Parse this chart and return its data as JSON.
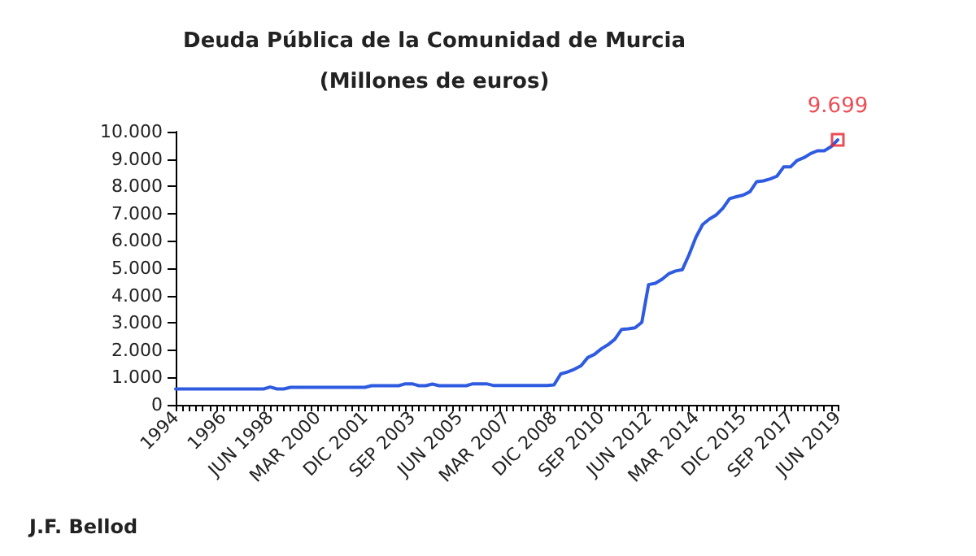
{
  "chart_data": {
    "type": "line",
    "title": "Deuda Pública de la Comunidad de Murcia",
    "subtitle": "(Millones de euros)",
    "annotations": [
      "J.F. Bellod"
    ],
    "categories": [
      "1994",
      null,
      null,
      null,
      null,
      null,
      null,
      "1996",
      null,
      null,
      null,
      null,
      null,
      null,
      "JUN 1998",
      null,
      null,
      null,
      null,
      null,
      null,
      "MAR 2000",
      null,
      null,
      null,
      null,
      null,
      null,
      "DIC 2001",
      null,
      null,
      null,
      null,
      null,
      null,
      "SEP 2003",
      null,
      null,
      null,
      null,
      null,
      null,
      "JUN 2005",
      null,
      null,
      null,
      null,
      null,
      null,
      "MAR 2007",
      null,
      null,
      null,
      null,
      null,
      null,
      "DIC 2008",
      null,
      null,
      null,
      null,
      null,
      null,
      "SEP 2010",
      null,
      null,
      null,
      null,
      null,
      null,
      "JUN 2012",
      null,
      null,
      null,
      null,
      null,
      null,
      "MAR 2014",
      null,
      null,
      null,
      null,
      null,
      null,
      "DIC 2015",
      null,
      null,
      null,
      null,
      null,
      null,
      "SEP 2017",
      null,
      null,
      null,
      null,
      null,
      null,
      "JUN 2019"
    ],
    "series": [
      {
        "color": "#2e5be0",
        "marker": "none",
        "values": [
          580,
          580,
          580,
          580,
          580,
          580,
          580,
          580,
          580,
          580,
          580,
          580,
          580,
          580,
          650,
          580,
          580,
          640,
          640,
          640,
          640,
          640,
          640,
          640,
          640,
          640,
          640,
          640,
          640,
          700,
          700,
          700,
          700,
          700,
          770,
          770,
          700,
          700,
          760,
          700,
          700,
          700,
          700,
          700,
          770,
          770,
          770,
          710,
          710,
          710,
          710,
          710,
          710,
          710,
          710,
          710,
          730,
          1130,
          1200,
          1300,
          1430,
          1730,
          1850,
          2050,
          2200,
          2400,
          2760,
          2780,
          2820,
          3020,
          4400,
          4450,
          4600,
          4800,
          4900,
          4950,
          5500,
          6130,
          6600,
          6800,
          6950,
          7200,
          7550,
          7620,
          7680,
          7800,
          8170,
          8200,
          8270,
          8370,
          8710,
          8710,
          8950,
          9050,
          9200,
          9300,
          9300,
          9450,
          9699
        ]
      },
      {
        "type": "scatter",
        "color": "#e8202a",
        "marker": "square",
        "x": [
          "JUN 2019"
        ],
        "values": [
          9699
        ],
        "value_labels": [
          "9.699"
        ]
      }
    ],
    "ylim": [
      0,
      10000
    ],
    "yticks": [
      0,
      {
        "value": 1000,
        "label": "1.000"
      },
      {
        "value": 2000,
        "label": "2.000"
      },
      {
        "value": 3000,
        "label": "3.000"
      },
      {
        "value": 4000,
        "label": "4.000"
      },
      {
        "value": 5000,
        "label": "5.000"
      },
      {
        "value": 6000,
        "label": "6.000"
      },
      {
        "value": 7000,
        "label": "7.000"
      },
      {
        "value": 8000,
        "label": "8.000"
      },
      {
        "value": 9000,
        "label": "9.000"
      },
      {
        "value": 10000,
        "label": "10.000"
      }
    ],
    "grid": false
  }
}
